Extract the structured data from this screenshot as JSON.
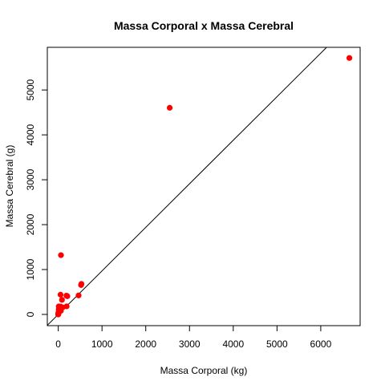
{
  "chart_data": {
    "type": "scatter",
    "title": "Massa Corporal x Massa Cerebral",
    "xlabel": "Massa Corporal (kg)",
    "ylabel": "Massa Cerebral (g)",
    "xlim": [
      -250,
      6900
    ],
    "ylim": [
      -250,
      5950
    ],
    "x_ticks": [
      0,
      1000,
      2000,
      3000,
      4000,
      5000,
      6000
    ],
    "y_ticks": [
      0,
      1000,
      2000,
      3000,
      4000,
      5000
    ],
    "x_tick_labels": [
      "0",
      "1000",
      "2000",
      "3000",
      "4000",
      "5000",
      "6000"
    ],
    "y_tick_labels": [
      "0",
      "1000",
      "2000",
      "3000",
      "4000",
      "5000"
    ],
    "grid": false,
    "legend": "none",
    "point_color": "#ff0000",
    "line_color": "#000000",
    "regression_line": {
      "intercept": 0,
      "slope": 0.97
    },
    "points": [
      {
        "x": 6654,
        "y": 5712
      },
      {
        "x": 2547,
        "y": 4603
      },
      {
        "x": 62,
        "y": 1320
      },
      {
        "x": 521,
        "y": 655
      },
      {
        "x": 529,
        "y": 680
      },
      {
        "x": 465,
        "y": 423
      },
      {
        "x": 207,
        "y": 406
      },
      {
        "x": 187,
        "y": 419
      },
      {
        "x": 192,
        "y": 180
      },
      {
        "x": 100,
        "y": 157
      },
      {
        "x": 85,
        "y": 325
      },
      {
        "x": 60,
        "y": 81
      },
      {
        "x": 55,
        "y": 175
      },
      {
        "x": 52,
        "y": 440
      },
      {
        "x": 36,
        "y": 119
      },
      {
        "x": 27,
        "y": 115
      },
      {
        "x": 10,
        "y": 179
      },
      {
        "x": 10,
        "y": 115
      },
      {
        "x": 6,
        "y": 50
      },
      {
        "x": 4,
        "y": 26
      },
      {
        "x": 3,
        "y": 25
      },
      {
        "x": 1,
        "y": 6
      },
      {
        "x": 1,
        "y": 12
      },
      {
        "x": 0.5,
        "y": 3
      },
      {
        "x": 0.1,
        "y": 1
      },
      {
        "x": 0.01,
        "y": 0.25
      }
    ]
  }
}
